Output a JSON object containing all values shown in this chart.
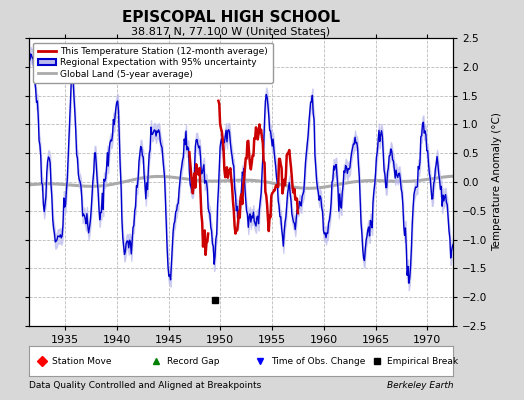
{
  "title": "EPISCOPAL HIGH SCHOOL",
  "subtitle": "38.817 N, 77.100 W (United States)",
  "ylabel": "Temperature Anomaly (°C)",
  "xlabel_bottom_left": "Data Quality Controlled and Aligned at Breakpoints",
  "xlabel_bottom_right": "Berkeley Earth",
  "xlim": [
    1931.5,
    1972.5
  ],
  "ylim": [
    -2.5,
    2.5
  ],
  "yticks": [
    -2.5,
    -2,
    -1.5,
    -1,
    -0.5,
    0,
    0.5,
    1,
    1.5,
    2,
    2.5
  ],
  "xticks": [
    1935,
    1940,
    1945,
    1950,
    1955,
    1960,
    1965,
    1970
  ],
  "background_color": "#d8d8d8",
  "plot_bg_color": "#ffffff",
  "grid_color": "#bbbbbb",
  "red_line_color": "#cc0000",
  "blue_line_color": "#0000cc",
  "blue_fill_color": "#bbbbee",
  "gray_line_color": "#aaaaaa",
  "empirical_break_year": 1949.5,
  "empirical_break_value": -2.05,
  "red_start": 1947.0,
  "red_gap_start": 1948.9,
  "red_gap_end": 1949.8,
  "red_end": 1957.5,
  "legend_labels": [
    "This Temperature Station (12-month average)",
    "Regional Expectation with 95% uncertainty",
    "Global Land (5-year average)"
  ],
  "bottom_legend": [
    "Station Move",
    "Record Gap",
    "Time of Obs. Change",
    "Empirical Break"
  ]
}
